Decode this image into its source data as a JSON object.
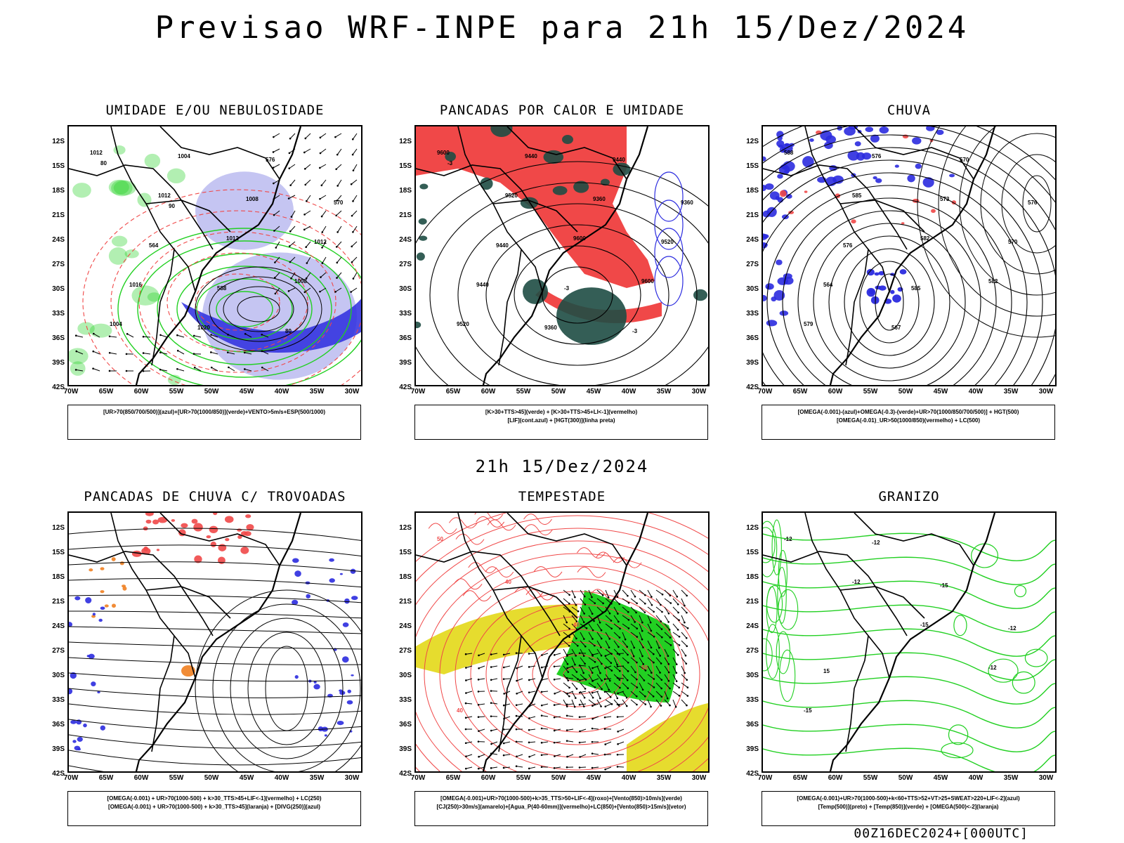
{
  "header": {
    "title": "Previsao WRF-INPE  para 21h 15/Dez/2024",
    "subtitle": "21h 15/Dez/2024",
    "footer": "00Z16DEC2024+[000UTC]"
  },
  "axes": {
    "lat_labels": [
      "12S",
      "15S",
      "18S",
      "21S",
      "24S",
      "27S",
      "30S",
      "33S",
      "36S",
      "39S",
      "42S"
    ],
    "lon_labels": [
      "70W",
      "65W",
      "60W",
      "55W",
      "50W",
      "45W",
      "40W",
      "35W",
      "30W"
    ]
  },
  "panels": [
    {
      "id": "umidade",
      "title": "UMIDADE E/OU NEBULOSIDADE",
      "legend": [
        "[UR>70(850/700/500)](azul)+[UR>70(1000/850)](verde)+VENTO>5m/s+ESP(500/1000)"
      ],
      "contour_labels": [
        "1012",
        "1012",
        "1012",
        "1008",
        "1004",
        "1004",
        "1008",
        "1012",
        "1016",
        "1020",
        "576",
        "570",
        "564",
        "588",
        "80",
        "80",
        "90"
      ]
    },
    {
      "id": "pancadas-calor",
      "title": "PANCADAS POR CALOR E UMIDADE",
      "legend": [
        "[K>30+TTS>45](verde) + [K>30+TTS>45+LI<-1](vermelho)",
        "[LIF](cont.azul) + [HGT(300)](linha preta)"
      ],
      "contour_labels": [
        "9600",
        "9520",
        "9600",
        "9600",
        "9520",
        "9440",
        "9360",
        "9520",
        "9440",
        "9360",
        "9440",
        "9360",
        "9440",
        "-3",
        "-3",
        "-3"
      ]
    },
    {
      "id": "chuva",
      "title": "CHUVA",
      "legend": [
        "[OMEGA(-0.001)-(azul)+OMEGA(-0.3)-(verde)+UR>70(1000/850/700/500)] + HGT(500)",
        "[OMEGA(-0.01)_UR>50(1000/850)(vermelho) + LC(500)"
      ],
      "contour_labels": [
        "588",
        "585",
        "582",
        "582",
        "579",
        "576",
        "573",
        "570",
        "564",
        "567",
        "570",
        "576",
        "576",
        "585"
      ]
    },
    {
      "id": "trovoadas",
      "title": "PANCADAS DE CHUVA C/ TROVOADAS",
      "legend": [
        "[OMEGA(-0.001) + UR>70(1000-500) + k>30_TTS>45+LIF<-1](vermelho) + LC(250)",
        "[OMEGA(-0.001) + UR>70(1000-500) + k>30_TTS>45](laranja) + [DIVG(250)](azul)"
      ],
      "contour_labels": []
    },
    {
      "id": "tempestade",
      "title": "TEMPESTADE",
      "legend": [
        "[OMEGA(-0.001)+UR>70(1000-500)+k>35_TTS>50+LIF<-4](roxo)+[Vento(850)>10m/s](verde)",
        "[CJ(250)>30m/s](amarelo)+[Agua_P(40-60mm)](vermelho)+LC(850)+[Vento(850)>15m/s](vetor)"
      ],
      "contour_labels": [
        "50",
        "40",
        "40",
        "50",
        "40"
      ]
    },
    {
      "id": "granizo",
      "title": "GRANIZO",
      "legend": [
        "[OMEGA(-0.001)+UR>70(1000-500)+k<60+TTS>52+VT>25+SWEAT>220+LIF<-2](azul)",
        "[Temp(500)](preto) + [Temp(850)](verde) + [OMEGA(500)<-2](laranja)"
      ],
      "contour_labels": [
        "-12",
        "-12",
        "-15",
        "-12",
        "-15",
        "-12",
        "-15",
        "-12",
        "15"
      ]
    }
  ],
  "colors": {
    "blue_light": "#b7b7ef",
    "blue": "#2b2bdf",
    "green": "#22d022",
    "red": "#f04848",
    "darkgreen": "#1e4d44",
    "yellow": "#e6dc2e",
    "orange": "#f08020",
    "black": "#000000"
  }
}
